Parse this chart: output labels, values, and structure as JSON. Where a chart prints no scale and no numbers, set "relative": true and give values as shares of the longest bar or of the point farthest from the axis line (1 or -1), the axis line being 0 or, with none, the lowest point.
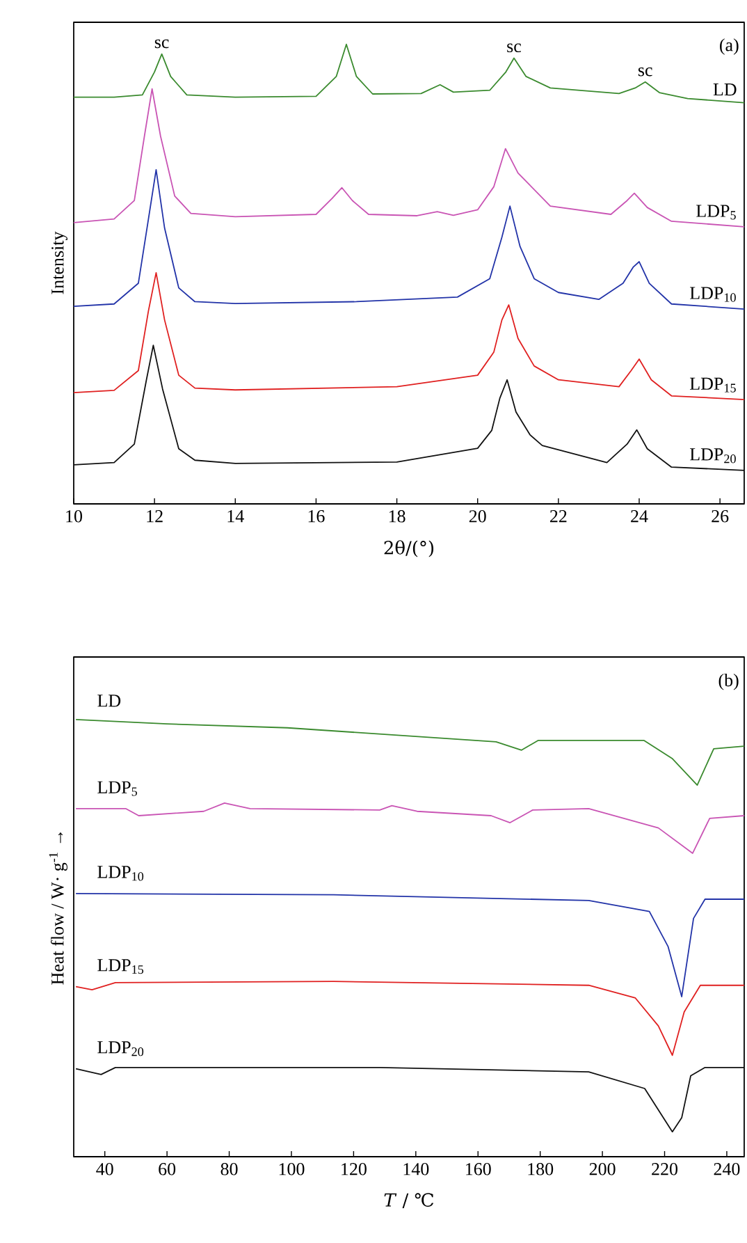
{
  "chart_data": [
    {
      "type": "line",
      "relative": true,
      "xlabel": "2θ/(°)",
      "ylabel": "Intensity",
      "xlim": [
        10,
        26.6
      ],
      "xticks": [
        10,
        12,
        14,
        16,
        18,
        20,
        22,
        24,
        26
      ],
      "tick_labels": "x",
      "annotations": [
        {
          "text": "sc",
          "x": 12.18,
          "y": 0.979
        },
        {
          "text": "sc",
          "x": 20.9,
          "y": 0.97
        },
        {
          "text": "sc",
          "x": 24.15,
          "y": 0.918
        },
        "(a)"
      ],
      "series": [
        {
          "name": "LD",
          "color": "#3a8a2e",
          "x": [
            10,
            11,
            11.7,
            12.0,
            12.18,
            12.4,
            12.8,
            14,
            16,
            16.5,
            16.75,
            17.0,
            17.4,
            18.6,
            19.07,
            19.4,
            20.3,
            20.7,
            20.9,
            21.2,
            21.8,
            23.5,
            23.9,
            24.15,
            24.5,
            25.2,
            26.6
          ],
          "values": [
            0.885,
            0.885,
            0.89,
            0.94,
            0.979,
            0.93,
            0.89,
            0.885,
            0.887,
            0.93,
            1.0,
            0.93,
            0.892,
            0.893,
            0.912,
            0.896,
            0.9,
            0.94,
            0.97,
            0.93,
            0.905,
            0.893,
            0.905,
            0.918,
            0.895,
            0.882,
            0.873
          ]
        },
        {
          "name": "LDP$_{5}$",
          "color": "#c954b4",
          "x": [
            10,
            11,
            11.5,
            11.75,
            11.94,
            12.15,
            12.5,
            12.9,
            14,
            16.0,
            16.4,
            16.64,
            16.9,
            17.3,
            18.5,
            19.0,
            19.4,
            20.0,
            20.4,
            20.69,
            21.0,
            21.8,
            23.3,
            23.7,
            23.88,
            24.2,
            24.8,
            26.6
          ],
          "values": [
            0.612,
            0.62,
            0.66,
            0.8,
            0.903,
            0.8,
            0.67,
            0.632,
            0.625,
            0.63,
            0.665,
            0.688,
            0.66,
            0.63,
            0.627,
            0.636,
            0.628,
            0.64,
            0.69,
            0.773,
            0.72,
            0.648,
            0.63,
            0.66,
            0.676,
            0.645,
            0.615,
            0.603
          ]
        },
        {
          "name": "LDP$_{10}$",
          "color": "#2233a8",
          "x": [
            10,
            11,
            11.6,
            11.85,
            12.04,
            12.25,
            12.6,
            13.0,
            14,
            17,
            19.5,
            20.3,
            20.6,
            20.8,
            21.05,
            21.4,
            22,
            23,
            23.6,
            23.85,
            24.0,
            24.25,
            24.8,
            26.6
          ],
          "values": [
            0.43,
            0.435,
            0.48,
            0.62,
            0.727,
            0.6,
            0.47,
            0.44,
            0.436,
            0.44,
            0.45,
            0.49,
            0.58,
            0.648,
            0.56,
            0.49,
            0.46,
            0.445,
            0.48,
            0.515,
            0.527,
            0.48,
            0.435,
            0.424
          ]
        },
        {
          "name": "LDP$_{15}$",
          "color": "#e02020",
          "x": [
            10,
            11,
            11.6,
            11.85,
            12.04,
            12.25,
            12.6,
            13.0,
            14,
            18,
            20,
            20.4,
            20.6,
            20.77,
            21.0,
            21.4,
            22,
            23.5,
            23.8,
            24.0,
            24.3,
            24.8,
            26.6
          ],
          "values": [
            0.242,
            0.247,
            0.29,
            0.42,
            0.503,
            0.4,
            0.28,
            0.252,
            0.248,
            0.255,
            0.28,
            0.33,
            0.4,
            0.433,
            0.36,
            0.3,
            0.27,
            0.255,
            0.29,
            0.315,
            0.27,
            0.235,
            0.227
          ]
        },
        {
          "name": "LDP$_{20}$",
          "color": "#111111",
          "x": [
            10,
            11,
            11.5,
            11.8,
            11.97,
            12.2,
            12.6,
            13.0,
            14,
            18,
            20,
            20.35,
            20.55,
            20.73,
            20.95,
            21.3,
            21.6,
            23.2,
            23.7,
            23.94,
            24.2,
            24.8,
            26.6
          ],
          "values": [
            0.085,
            0.09,
            0.13,
            0.27,
            0.345,
            0.25,
            0.12,
            0.095,
            0.088,
            0.091,
            0.121,
            0.16,
            0.23,
            0.27,
            0.2,
            0.15,
            0.127,
            0.09,
            0.13,
            0.161,
            0.12,
            0.08,
            0.073
          ]
        }
      ]
    },
    {
      "type": "line",
      "relative": true,
      "xlabel": "*T* / ℃",
      "ylabel": "Heat flow / W· g$^{-1}$ →",
      "xlim": [
        30,
        245.6
      ],
      "xticks": [
        40,
        60,
        80,
        100,
        120,
        140,
        160,
        180,
        200,
        220,
        240
      ],
      "tick_labels": "x",
      "annotations": [
        "(b)"
      ],
      "series": [
        {
          "name": "LD",
          "color": "#3a8a2e",
          "x": [
            30.7,
            60,
            98.7,
            165.8,
            174,
            179.3,
            213.4,
            222.4,
            230.5,
            235.8,
            245.6
          ],
          "values": [
            1.0,
            0.99,
            0.981,
            0.949,
            0.93,
            0.952,
            0.952,
            0.911,
            0.85,
            0.933,
            0.939
          ]
        },
        {
          "name": "LDP$_{5}$",
          "color": "#c954b4",
          "x": [
            30.7,
            46.8,
            50.9,
            71.8,
            78.5,
            86.7,
            128.4,
            132.3,
            140.4,
            164.2,
            170.3,
            177.6,
            195.6,
            218,
            229,
            234.5,
            245.6
          ],
          "values": [
            0.796,
            0.796,
            0.78,
            0.79,
            0.809,
            0.796,
            0.793,
            0.803,
            0.79,
            0.78,
            0.764,
            0.793,
            0.796,
            0.752,
            0.694,
            0.774,
            0.78
          ]
        },
        {
          "name": "LDP$_{10}$",
          "color": "#2233a8",
          "x": [
            30.7,
            113.6,
            195.6,
            215.1,
            221.1,
            225.5,
            229.3,
            233,
            245.6
          ],
          "values": [
            0.602,
            0.599,
            0.586,
            0.561,
            0.481,
            0.366,
            0.545,
            0.589,
            0.589
          ]
        },
        {
          "name": "LDP$_{15}$",
          "color": "#e02020",
          "x": [
            30.7,
            35.9,
            43.4,
            113.6,
            195.6,
            210.6,
            218,
            222.5,
            226.3,
            231.5,
            245.6
          ],
          "values": [
            0.389,
            0.382,
            0.398,
            0.401,
            0.392,
            0.363,
            0.299,
            0.232,
            0.331,
            0.392,
            0.392
          ]
        },
        {
          "name": "LDP$_{20}$",
          "color": "#111111",
          "x": [
            30.7,
            38.8,
            43.4,
            128.5,
            195.6,
            213.6,
            219.6,
            222.5,
            225.5,
            228.4,
            233,
            245.6
          ],
          "values": [
            0.201,
            0.188,
            0.204,
            0.204,
            0.194,
            0.156,
            0.089,
            0.057,
            0.089,
            0.185,
            0.204,
            0.204
          ]
        }
      ]
    }
  ]
}
